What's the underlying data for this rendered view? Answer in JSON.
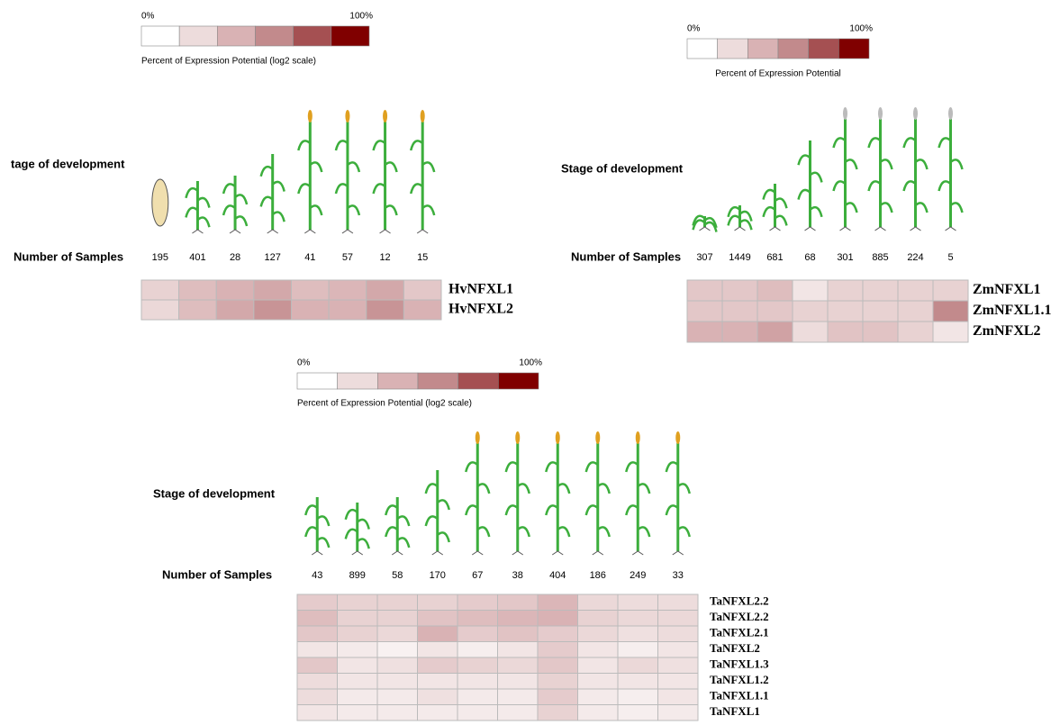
{
  "chart_data": [
    {
      "type": "heatmap",
      "legend_min": "0%",
      "legend_max": "100%",
      "legend_title": "Percent of Expression Potential (log2 scale)",
      "legend_colors": [
        "#ffffff",
        "#eddcdc",
        "#d9b2b4",
        "#c28a8c",
        "#a55052",
        "#800000"
      ],
      "title": "tage of development",
      "samples_label": "Number of Samples",
      "samples": [
        195,
        401,
        28,
        127,
        41,
        57,
        12,
        15
      ],
      "rows": [
        "HvNFXL1",
        "HvNFXL2"
      ],
      "values": [
        [
          25,
          35,
          40,
          45,
          35,
          38,
          45,
          30
        ],
        [
          22,
          35,
          45,
          55,
          40,
          40,
          55,
          40
        ]
      ]
    },
    {
      "type": "heatmap",
      "legend_min": "0%",
      "legend_max": "100%",
      "legend_title": "Percent of Expression Potential",
      "legend_colors": [
        "#ffffff",
        "#eddcdc",
        "#d9b2b4",
        "#c28a8c",
        "#a55052",
        "#800000"
      ],
      "title": "Stage of development",
      "samples_label": "Number of Samples",
      "samples": [
        307,
        1449,
        681,
        68,
        301,
        885,
        224,
        5
      ],
      "rows": [
        "ZmNFXL1",
        "ZmNFXL1.1",
        "ZmNFXL2"
      ],
      "values": [
        [
          30,
          30,
          35,
          15,
          25,
          25,
          25,
          25
        ],
        [
          30,
          30,
          30,
          25,
          25,
          25,
          25,
          60
        ],
        [
          40,
          40,
          48,
          20,
          32,
          32,
          25,
          15
        ]
      ]
    },
    {
      "type": "heatmap",
      "legend_min": "0%",
      "legend_max": "100%",
      "legend_title": "Percent of Expression Potential (log2 scale)",
      "legend_colors": [
        "#ffffff",
        "#eddcdc",
        "#d9b2b4",
        "#c28a8c",
        "#a55052",
        "#800000"
      ],
      "title": "Stage of development",
      "samples_label": "Number of Samples",
      "samples": [
        43,
        899,
        58,
        170,
        67,
        38,
        404,
        186,
        249,
        33
      ],
      "rows": [
        "TaNFXL2.2",
        "TaNFXL2.2",
        "TaNFXL2.1",
        "TaNFXL2",
        "TaNFXL1.3",
        "TaNFXL1.2",
        "TaNFXL1.1",
        "TaNFXL1"
      ],
      "values": [
        [
          28,
          25,
          25,
          25,
          28,
          30,
          38,
          22,
          20,
          20
        ],
        [
          35,
          25,
          25,
          32,
          35,
          38,
          40,
          25,
          22,
          22
        ],
        [
          30,
          25,
          22,
          40,
          28,
          32,
          28,
          22,
          18,
          20
        ],
        [
          15,
          12,
          8,
          15,
          10,
          15,
          28,
          15,
          10,
          15
        ],
        [
          30,
          15,
          18,
          28,
          25,
          22,
          30,
          15,
          22,
          18
        ],
        [
          20,
          15,
          15,
          15,
          15,
          15,
          25,
          15,
          15,
          15
        ],
        [
          20,
          12,
          12,
          18,
          12,
          12,
          28,
          12,
          10,
          15
        ],
        [
          15,
          12,
          12,
          12,
          12,
          12,
          25,
          12,
          10,
          12
        ]
      ]
    }
  ]
}
